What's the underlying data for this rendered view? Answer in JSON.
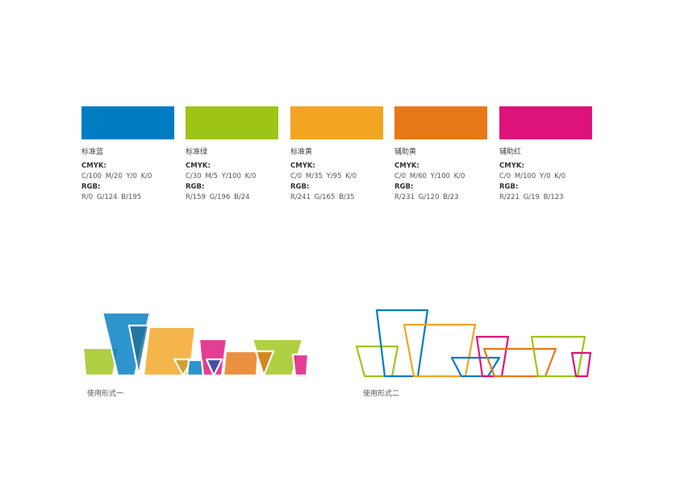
{
  "swatches": [
    {
      "name": "标准蓝",
      "cmyk_label": "CMYK:",
      "cmyk": "C/100  M/20  Y/0  K/0",
      "rgb_label": "RGB:",
      "rgb": "R/0  G/124  B/195",
      "color": "#007CC3"
    },
    {
      "name": "标准绿",
      "cmyk_label": "CMYK:",
      "cmyk": "C/30  M/5  Y/100  K/0",
      "rgb_label": "RGB:",
      "rgb": "R/159  G/196  B/24",
      "color": "#9FC418"
    },
    {
      "name": "标准黄",
      "cmyk_label": "CMYK:",
      "cmyk": "C/0  M/35  Y/95  K/0",
      "rgb_label": "RGB:",
      "rgb": "R/241  G/165  B/35",
      "color": "#F1A523"
    },
    {
      "name": "辅助黄",
      "cmyk_label": "CMYK:",
      "cmyk": "C/0  M/60  Y/100  K/0",
      "rgb_label": "RGB:",
      "rgb": "R/231  G/120  B/23",
      "color": "#E77817"
    },
    {
      "name": "辅助红",
      "cmyk_label": "CMYK:",
      "cmyk": "C/0  M/100  Y/0  K/0",
      "rgb_label": "RGB:",
      "rgb": "R/221  G/19  B/123",
      "color": "#DD137B"
    }
  ],
  "usage": [
    {
      "caption": "使用形式一",
      "style": "filled"
    },
    {
      "caption": "使用形式二",
      "style": "outline"
    }
  ]
}
